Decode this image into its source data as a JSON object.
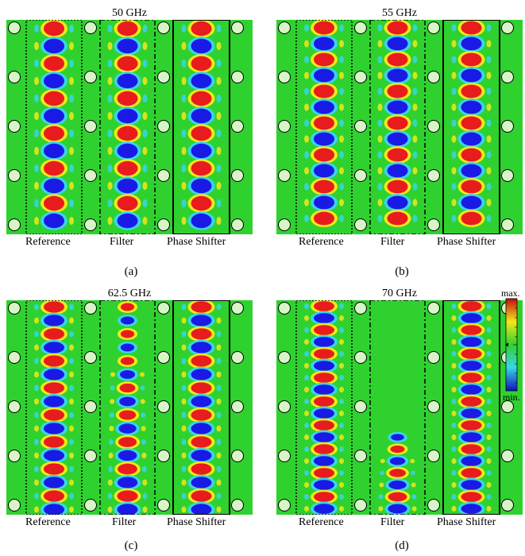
{
  "panels": [
    {
      "id": "a",
      "title": "50 GHz",
      "label": "(a)",
      "period": 22,
      "filter_field": "strong",
      "ps_field": "strong"
    },
    {
      "id": "b",
      "title": "55 GHz",
      "label": "(b)",
      "period": 20,
      "filter_field": "strong",
      "ps_field": "strong"
    },
    {
      "id": "c",
      "title": "62.5 GHz",
      "label": "(c)",
      "period": 17,
      "filter_field": "decaying",
      "ps_field": "strong"
    },
    {
      "id": "d",
      "title": "70 GHz",
      "label": "(d)",
      "period": 15,
      "filter_field": "weak",
      "ps_field": "strong"
    }
  ],
  "section_labels": {
    "reference": "Reference",
    "filter": "Filter",
    "phase_shifter": "Phase Shifter"
  },
  "colorbar": {
    "max_label": "max.",
    "min_label": "min."
  },
  "colors": {
    "background": "#2fd12f",
    "via_fill": "#d8f5c8",
    "high": "#e81c1c",
    "mid_high": "#f2e81a",
    "mid_low": "#39d6e6",
    "low": "#1a1ae6"
  }
}
